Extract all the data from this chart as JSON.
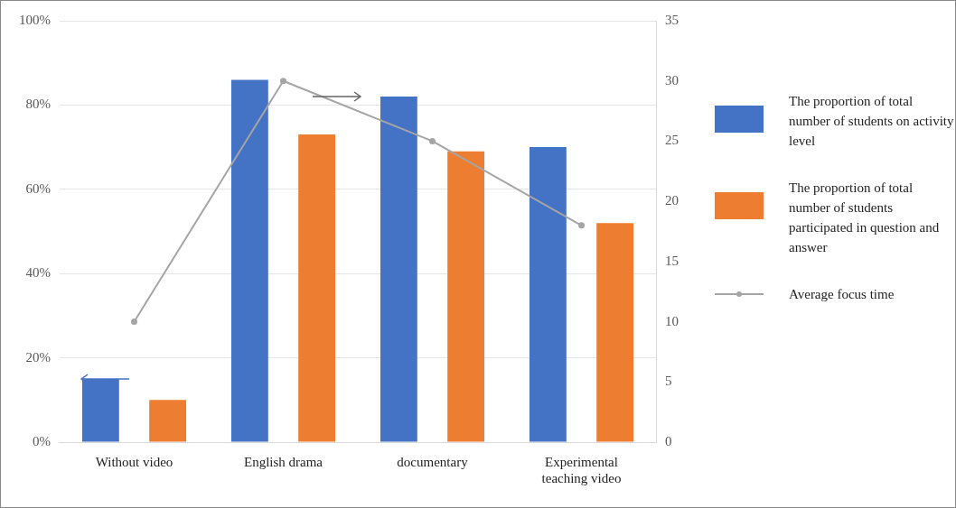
{
  "chart_data": {
    "type": "bar",
    "categories": [
      "Without video",
      "English drama",
      "documentary",
      "Experimental teaching video"
    ],
    "series": [
      {
        "name": "The proportion of total number of students on activity level",
        "color": "#4472c4",
        "values": [
          15,
          86,
          82,
          70
        ]
      },
      {
        "name": "The proportion of total number of students participated in question and answer",
        "color": "#ed7d31",
        "values": [
          10,
          73,
          69,
          52
        ]
      },
      {
        "name": "Average  focus time",
        "type": "line",
        "axis": "y2",
        "color": "#a5a5a5",
        "values": [
          10,
          30,
          25,
          18
        ]
      }
    ],
    "ylim": [
      0,
      100
    ],
    "yticks": [
      {
        "value": 0,
        "label": "0%"
      },
      {
        "value": 20,
        "label": "20%"
      },
      {
        "value": 40,
        "label": "40%"
      },
      {
        "value": 60,
        "label": "60%"
      },
      {
        "value": 80,
        "label": "80%"
      },
      {
        "value": 100,
        "label": "100%"
      }
    ],
    "y2lim": [
      0,
      35
    ],
    "y2ticks": [
      0,
      5,
      10,
      15,
      20,
      25,
      30,
      35
    ],
    "grid": "y",
    "legend": "right",
    "marker": "circle"
  }
}
